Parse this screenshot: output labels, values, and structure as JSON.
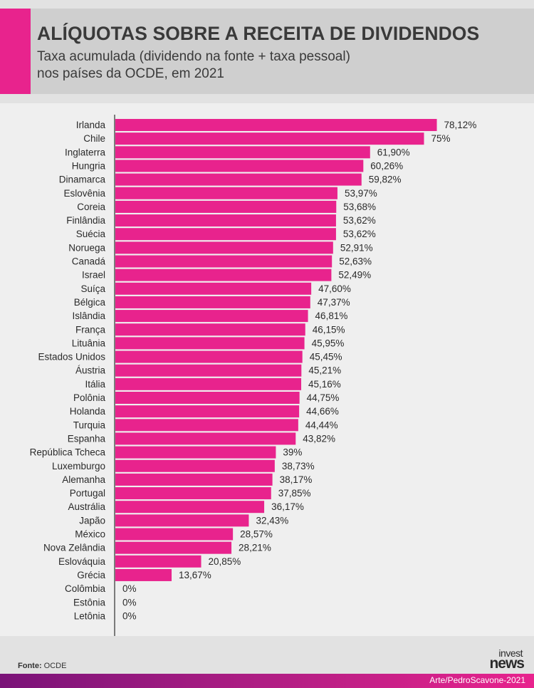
{
  "header": {
    "title": "ALÍQUOTAS SOBRE A RECEITA DE DIVIDENDOS",
    "subtitle_line1": "Taxa acumulada (dividendo na fonte + taxa pessoal)",
    "subtitle_line2": "nos países da OCDE, em 2021"
  },
  "footer": {
    "source_label": "Fonte:",
    "source_value": "OCDE",
    "credit": "Arte/PedroScavone-2021",
    "logo_line1": "invest",
    "logo_line2": "news"
  },
  "colors": {
    "accent": "#e8238d",
    "bar": "#e8238d",
    "text": "#3a3a3a",
    "footer_dark": "#7a1378"
  },
  "chart_data": {
    "type": "bar",
    "orientation": "horizontal",
    "categories": [
      "Irlanda",
      "Chile",
      "Inglaterra",
      "Hungria",
      "Dinamarca",
      "Eslovênia",
      "Coreia",
      "Finlândia",
      "Suécia",
      "Noruega",
      "Canadá",
      "Israel",
      "Suíça",
      "Bélgica",
      "Islândia",
      "França",
      "Lituânia",
      "Estados Unidos",
      "Áustria",
      "Itália",
      "Polônia",
      "Holanda",
      "Turquia",
      "Espanha",
      "República Tcheca",
      "Luxemburgo",
      "Alemanha",
      "Portugal",
      "Austrália",
      "Japão",
      "México",
      "Nova Zelândia",
      "Eslováquia",
      "Grécia",
      "Colômbia",
      "Estônia",
      "Letônia"
    ],
    "values": [
      78.12,
      75,
      61.9,
      60.26,
      59.82,
      53.97,
      53.68,
      53.62,
      53.62,
      52.91,
      52.63,
      52.49,
      47.6,
      47.37,
      46.81,
      46.15,
      45.95,
      45.45,
      45.21,
      45.16,
      44.75,
      44.66,
      44.44,
      43.82,
      39,
      38.73,
      38.17,
      37.85,
      36.17,
      32.43,
      28.57,
      28.21,
      20.85,
      13.67,
      0,
      0,
      0
    ],
    "labels": [
      "78,12%",
      "75%",
      "61,90%",
      "60,26%",
      "59,82%",
      "53,97%",
      "53,68%",
      "53,62%",
      "53,62%",
      "52,91%",
      "52,63%",
      "52,49%",
      "47,60%",
      "47,37%",
      "46,81%",
      "46,15%",
      "45,95%",
      "45,45%",
      "45,21%",
      "45,16%",
      "44,75%",
      "44,66%",
      "44,44%",
      "43,82%",
      "39%",
      "38,73%",
      "38,17%",
      "37,85%",
      "36,17%",
      "32,43%",
      "28,57%",
      "28,21%",
      "20,85%",
      "13,67%",
      "0%",
      "0%",
      "0%"
    ],
    "xlim": [
      0,
      80
    ],
    "unit": "%",
    "grid": false,
    "legend": "none"
  }
}
